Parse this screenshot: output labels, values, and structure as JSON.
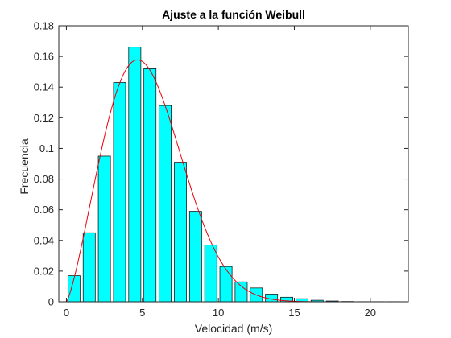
{
  "chart_data": {
    "type": "bar",
    "title": "Ajuste a la función Weibull",
    "xlabel": "Velocidad (m/s)",
    "ylabel": "Frecuencia",
    "xlim": [
      -0.5,
      22.5
    ],
    "ylim": [
      0,
      0.18
    ],
    "xticks": [
      0,
      5,
      10,
      15,
      20
    ],
    "yticks": [
      0,
      0.02,
      0.04,
      0.06,
      0.08,
      0.1,
      0.12,
      0.14,
      0.16,
      0.18
    ],
    "xtick_labels": [
      "0",
      "5",
      "10",
      "15",
      "20"
    ],
    "ytick_labels": [
      "0",
      "0.02",
      "0.04",
      "0.06",
      "0.08",
      "0.1",
      "0.12",
      "0.14",
      "0.16",
      "0.18"
    ],
    "bar_width": 0.8,
    "bar_color": "#00ffff",
    "curve_color": "#e8000b",
    "grid": false,
    "bars": {
      "x": [
        0.5,
        1.5,
        2.5,
        3.5,
        4.5,
        5.5,
        6.5,
        7.5,
        8.5,
        9.5,
        10.5,
        11.5,
        12.5,
        13.5,
        14.5,
        15.5,
        16.5,
        17.5,
        18.5,
        19.5,
        20.5,
        21.5
      ],
      "values": [
        0.017,
        0.045,
        0.095,
        0.143,
        0.166,
        0.152,
        0.128,
        0.091,
        0.059,
        0.037,
        0.023,
        0.013,
        0.009,
        0.005,
        0.003,
        0.002,
        0.001,
        0.0005,
        0.0002,
        0.0001,
        0.0001,
        0.0001
      ]
    },
    "curve": {
      "type": "weibull-pdf",
      "shape_k": 2.3,
      "scale_c": 6.0,
      "x_range": [
        0,
        22.5
      ]
    }
  }
}
